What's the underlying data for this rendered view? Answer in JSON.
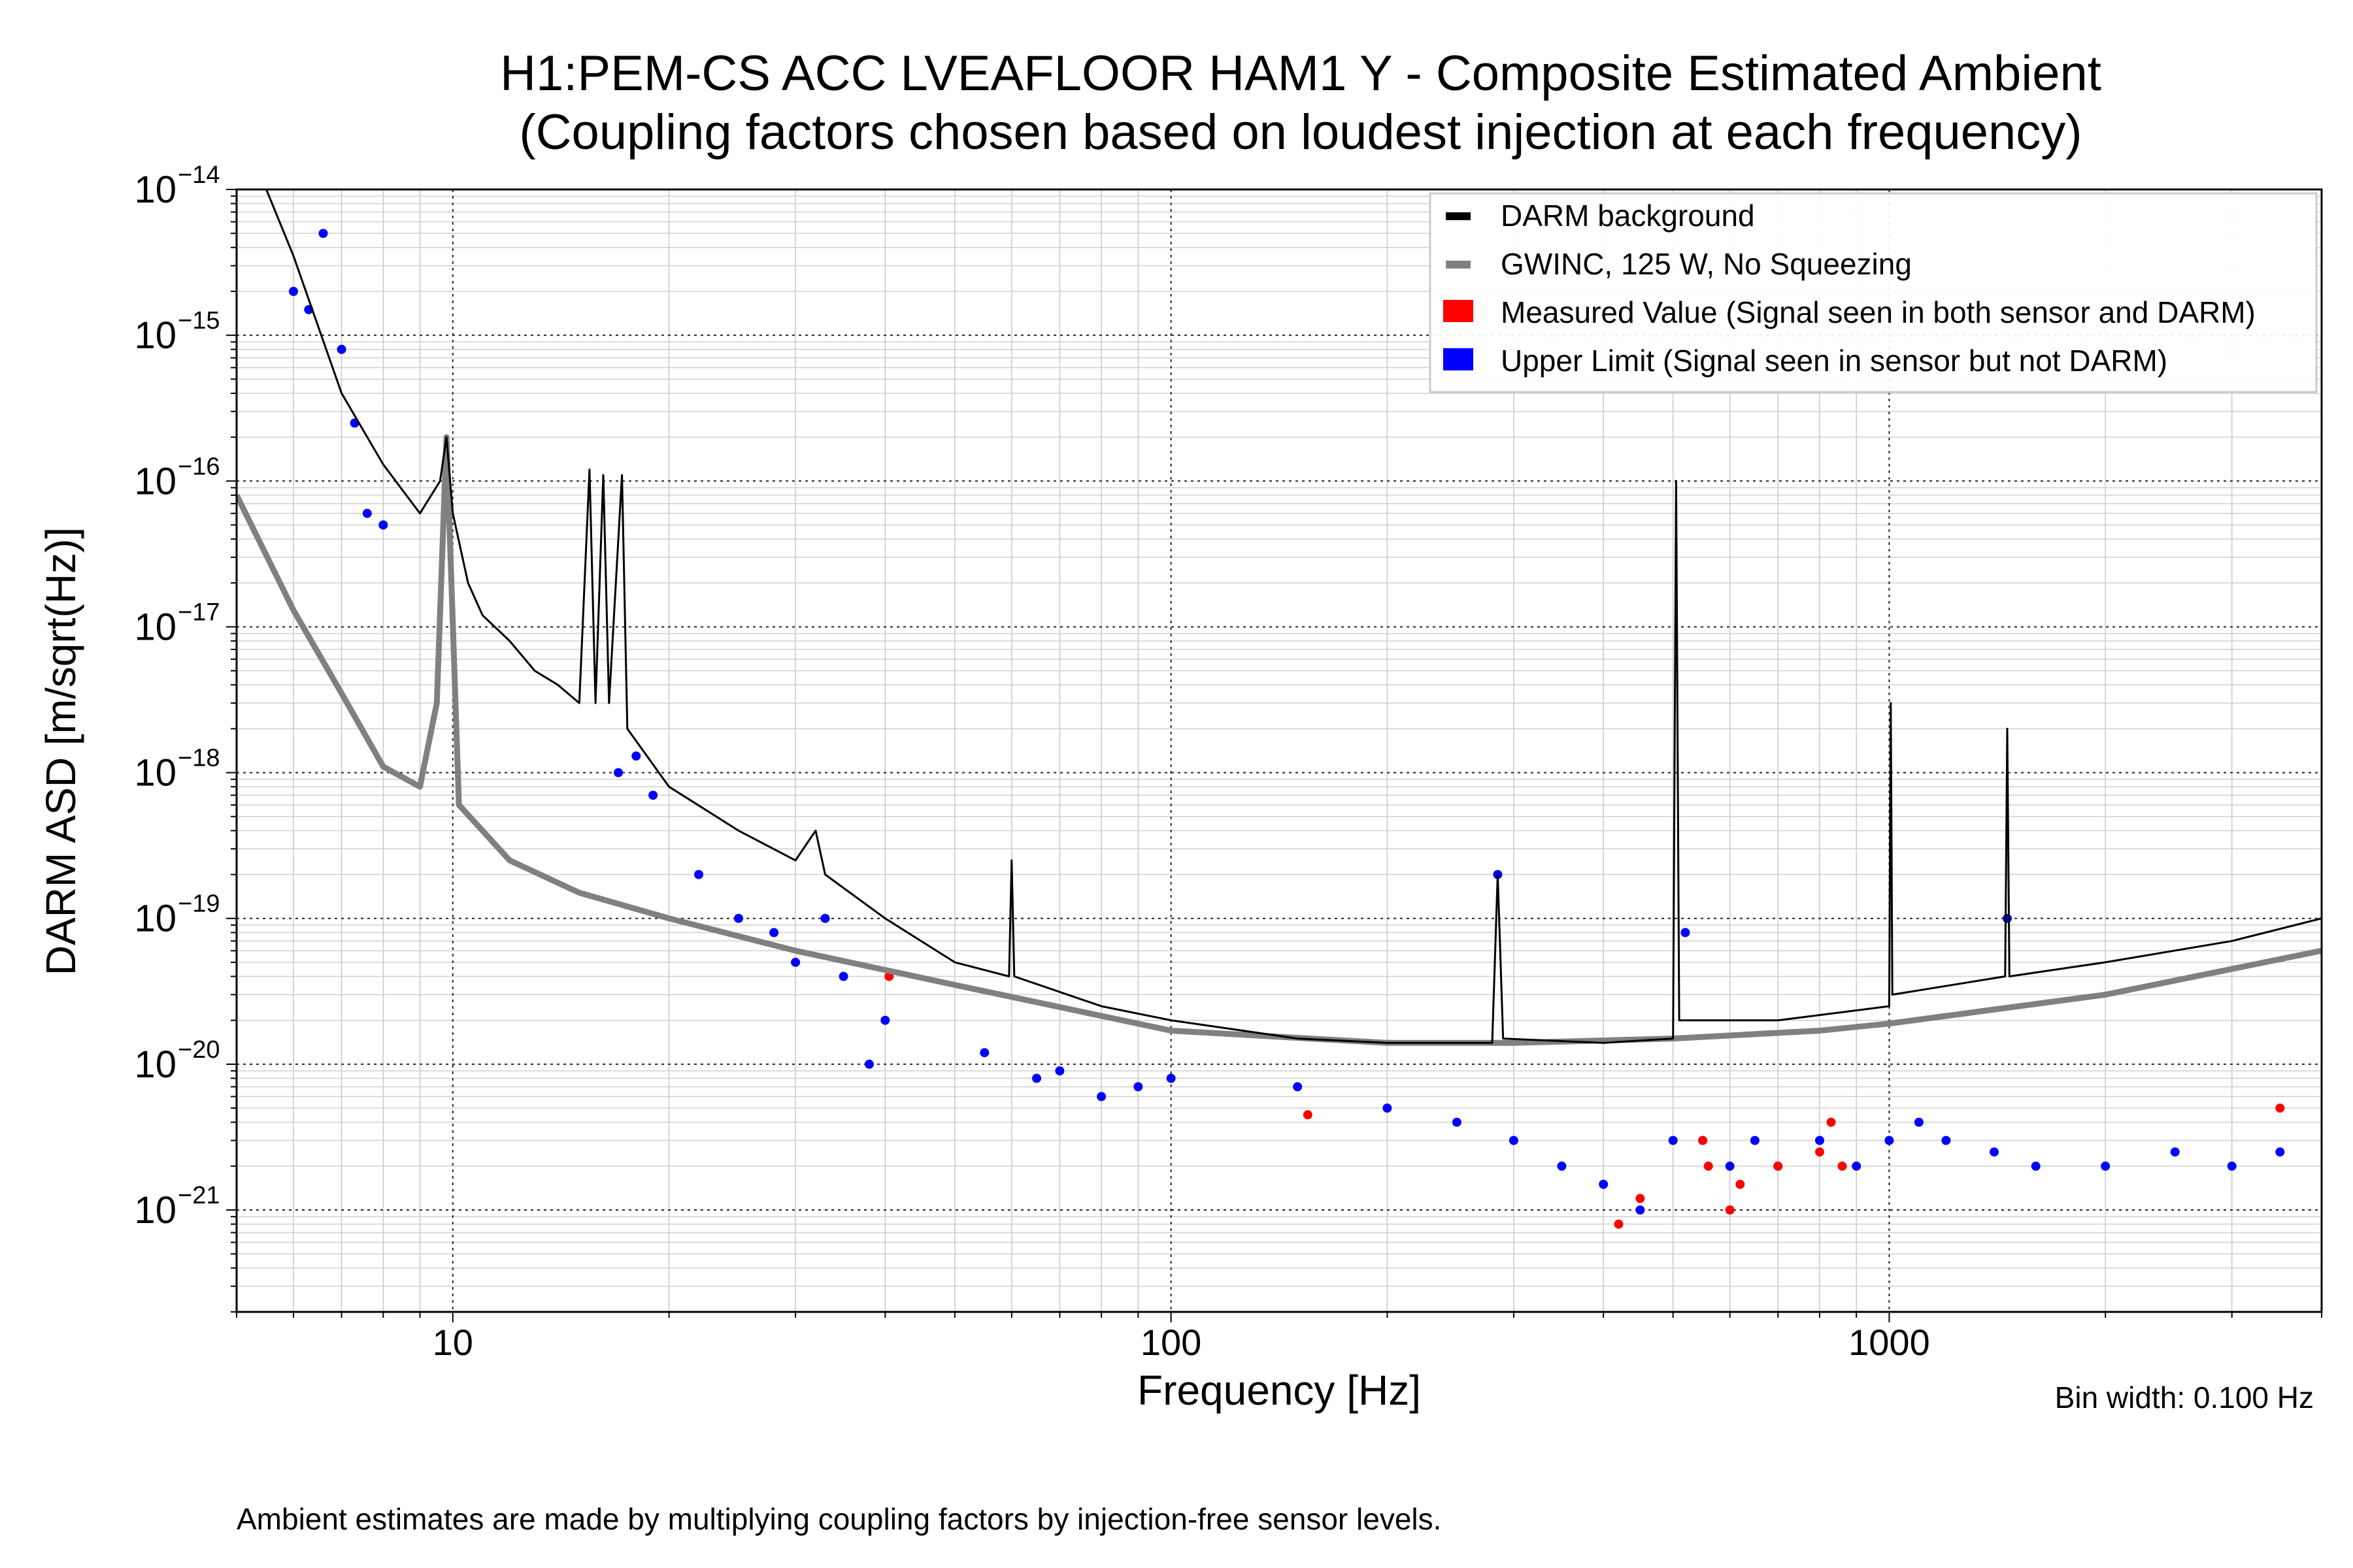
{
  "title_line1": "H1:PEM-CS ACC LVEAFLOOR HAM1 Y - Composite Estimated Ambient",
  "title_line2": "(Coupling factors chosen based on loudest injection at each frequency)",
  "footnote": "Ambient estimates are made by multiplying coupling factors by injection-free sensor levels.",
  "bin_width_note": "Bin width: 0.100 Hz",
  "colors": {
    "darm": "#000000",
    "gwinc": "#808080",
    "measured": "#ff0000",
    "upper_limit": "#0000ff",
    "grid": "#999999"
  },
  "chart_data": {
    "type": "line",
    "xlabel": "Frequency [Hz]",
    "ylabel": "DARM ASD [m/sqrt(Hz)]",
    "xscale": "log",
    "yscale": "log",
    "xlim": [
      5,
      4000
    ],
    "ylim": [
      2e-22,
      1e-14
    ],
    "grid": true,
    "legend_position": "top-right",
    "x_tick_labels": [
      "10",
      "100",
      "1000"
    ],
    "y_tick_labels": [
      "−14",
      "−15",
      "−16",
      "−17",
      "−18",
      "−19",
      "−20",
      "−21"
    ],
    "legend": [
      "DARM background",
      "GWINC, 125 W, No Squeezing",
      "Measured Value (Signal seen in both sensor and DARM)",
      "Upper Limit (Signal seen in sensor but not DARM)"
    ],
    "series": [
      {
        "name": "DARM background",
        "kind": "line",
        "points": [
          [
            5.5,
            1e-14
          ],
          [
            6,
            3.5e-15
          ],
          [
            7,
            4e-16
          ],
          [
            8,
            1.3e-16
          ],
          [
            9,
            6e-17
          ],
          [
            9.6,
            1e-16
          ],
          [
            9.8,
            2e-16
          ],
          [
            10,
            6e-17
          ],
          [
            10.5,
            2e-17
          ],
          [
            11,
            1.2e-17
          ],
          [
            12,
            8e-18
          ],
          [
            13,
            5e-18
          ],
          [
            14,
            4e-18
          ],
          [
            15,
            3e-18
          ],
          [
            15.5,
            1.2e-16
          ],
          [
            15.8,
            3e-18
          ],
          [
            16.2,
            1.1e-16
          ],
          [
            16.5,
            3e-18
          ],
          [
            17.2,
            1.1e-16
          ],
          [
            17.5,
            2e-18
          ],
          [
            20,
            8e-19
          ],
          [
            25,
            4e-19
          ],
          [
            30,
            2.5e-19
          ],
          [
            32,
            4e-19
          ],
          [
            33,
            2e-19
          ],
          [
            40,
            1e-19
          ],
          [
            50,
            5e-20
          ],
          [
            59.5,
            4e-20
          ],
          [
            60,
            2.5e-19
          ],
          [
            60.5,
            4e-20
          ],
          [
            80,
            2.5e-20
          ],
          [
            100,
            2e-20
          ],
          [
            150,
            1.5e-20
          ],
          [
            200,
            1.4e-20
          ],
          [
            280,
            1.4e-20
          ],
          [
            285,
            2e-19
          ],
          [
            290,
            1.5e-20
          ],
          [
            400,
            1.4e-20
          ],
          [
            500,
            1.5e-20
          ],
          [
            505,
            1e-16
          ],
          [
            510,
            2e-20
          ],
          [
            700,
            2e-20
          ],
          [
            1000,
            2.5e-20
          ],
          [
            1005,
            3e-18
          ],
          [
            1010,
            3e-20
          ],
          [
            1450,
            4e-20
          ],
          [
            1460,
            2e-18
          ],
          [
            1470,
            4e-20
          ],
          [
            2000,
            5e-20
          ],
          [
            3000,
            7e-20
          ],
          [
            4000,
            1e-19
          ]
        ]
      },
      {
        "name": "GWINC, 125 W, No Squeezing",
        "kind": "line",
        "points": [
          [
            5,
            8e-17
          ],
          [
            6,
            1.3e-17
          ],
          [
            7,
            3.5e-18
          ],
          [
            8,
            1.1e-18
          ],
          [
            9,
            8e-19
          ],
          [
            9.5,
            3e-18
          ],
          [
            9.8,
            2e-16
          ],
          [
            10.2,
            6e-19
          ],
          [
            12,
            2.5e-19
          ],
          [
            15,
            1.5e-19
          ],
          [
            20,
            1e-19
          ],
          [
            30,
            6e-20
          ],
          [
            50,
            3.5e-20
          ],
          [
            100,
            1.7e-20
          ],
          [
            200,
            1.4e-20
          ],
          [
            300,
            1.4e-20
          ],
          [
            500,
            1.5e-20
          ],
          [
            800,
            1.7e-20
          ],
          [
            1000,
            1.9e-20
          ],
          [
            2000,
            3e-20
          ],
          [
            4000,
            6e-20
          ]
        ]
      },
      {
        "name": "Measured Value (Signal seen in both sensor and DARM)",
        "kind": "points",
        "points": [
          [
            40.5,
            4e-20
          ],
          [
            155,
            4.5e-21
          ],
          [
            420,
            8e-22
          ],
          [
            450,
            1.2e-21
          ],
          [
            550,
            3e-21
          ],
          [
            560,
            2e-21
          ],
          [
            600,
            1e-21
          ],
          [
            620,
            1.5e-21
          ],
          [
            700,
            2e-21
          ],
          [
            800,
            2.5e-21
          ],
          [
            830,
            4e-21
          ],
          [
            860,
            2e-21
          ],
          [
            3500,
            5e-21
          ]
        ]
      },
      {
        "name": "Upper Limit (Signal seen in sensor but not DARM)",
        "kind": "points",
        "points": [
          [
            6,
            2e-15
          ],
          [
            6.3,
            1.5e-15
          ],
          [
            6.6,
            5e-15
          ],
          [
            7,
            8e-16
          ],
          [
            7.3,
            2.5e-16
          ],
          [
            7.6,
            6e-17
          ],
          [
            8,
            5e-17
          ],
          [
            17,
            1e-18
          ],
          [
            18,
            1.3e-18
          ],
          [
            19,
            7e-19
          ],
          [
            22,
            2e-19
          ],
          [
            25,
            1e-19
          ],
          [
            28,
            8e-20
          ],
          [
            30,
            5e-20
          ],
          [
            33,
            1e-19
          ],
          [
            35,
            4e-20
          ],
          [
            38,
            1e-20
          ],
          [
            40,
            2e-20
          ],
          [
            55,
            1.2e-20
          ],
          [
            65,
            8e-21
          ],
          [
            70,
            9e-21
          ],
          [
            80,
            6e-21
          ],
          [
            90,
            7e-21
          ],
          [
            100,
            8e-21
          ],
          [
            150,
            7e-21
          ],
          [
            200,
            5e-21
          ],
          [
            250,
            4e-21
          ],
          [
            285,
            2e-19
          ],
          [
            300,
            3e-21
          ],
          [
            350,
            2e-21
          ],
          [
            400,
            1.5e-21
          ],
          [
            450,
            1e-21
          ],
          [
            500,
            3e-21
          ],
          [
            520,
            8e-20
          ],
          [
            550,
            3e-21
          ],
          [
            600,
            2e-21
          ],
          [
            650,
            3e-21
          ],
          [
            700,
            2e-21
          ],
          [
            800,
            3e-21
          ],
          [
            900,
            2e-21
          ],
          [
            1000,
            3e-21
          ],
          [
            1100,
            4e-21
          ],
          [
            1200,
            3e-21
          ],
          [
            1400,
            2.5e-21
          ],
          [
            1460,
            1e-19
          ],
          [
            1600,
            2e-21
          ],
          [
            2000,
            2e-21
          ],
          [
            2500,
            2.5e-21
          ],
          [
            3000,
            2e-21
          ],
          [
            3500,
            2.5e-21
          ]
        ]
      }
    ]
  }
}
